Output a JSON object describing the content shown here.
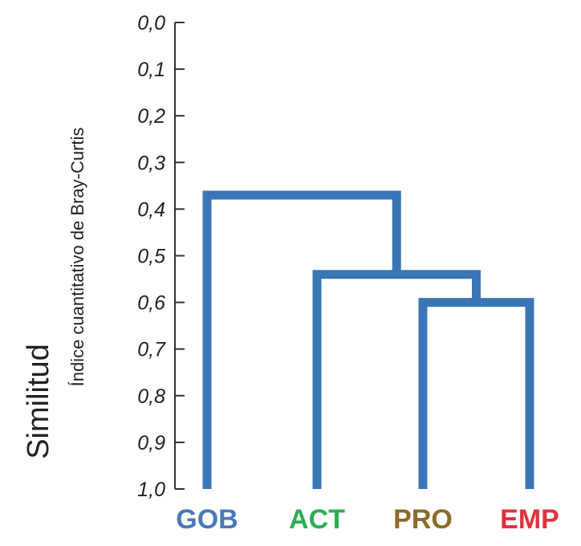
{
  "chart_data": {
    "type": "dendrogram",
    "title": "",
    "ylabel": "Similitud",
    "ysublabel": "Índice cuantitativo de Bray-Curtis",
    "yticks": [
      "0,0",
      "0,1",
      "0,2",
      "0,3",
      "0,4",
      "0,5",
      "0,6",
      "0,7",
      "0,8",
      "0,9",
      "1,0"
    ],
    "ylim": [
      0,
      1
    ],
    "y_inverted": true,
    "leaves": [
      {
        "label": "GOB",
        "color": "#4A78B8"
      },
      {
        "label": "ACT",
        "color": "#2EAD55"
      },
      {
        "label": "PRO",
        "color": "#8C6A2A"
      },
      {
        "label": "EMP",
        "color": "#E0323B"
      }
    ],
    "merges": [
      {
        "left": "PRO",
        "right": "EMP",
        "similarity": 0.6
      },
      {
        "left": "ACT",
        "right": "PRO+EMP",
        "similarity": 0.54
      },
      {
        "left": "GOB",
        "right": "ACT+PRO+EMP",
        "similarity": 0.37
      }
    ],
    "line_color": "#3A76B6",
    "axis_color": "#333333"
  }
}
